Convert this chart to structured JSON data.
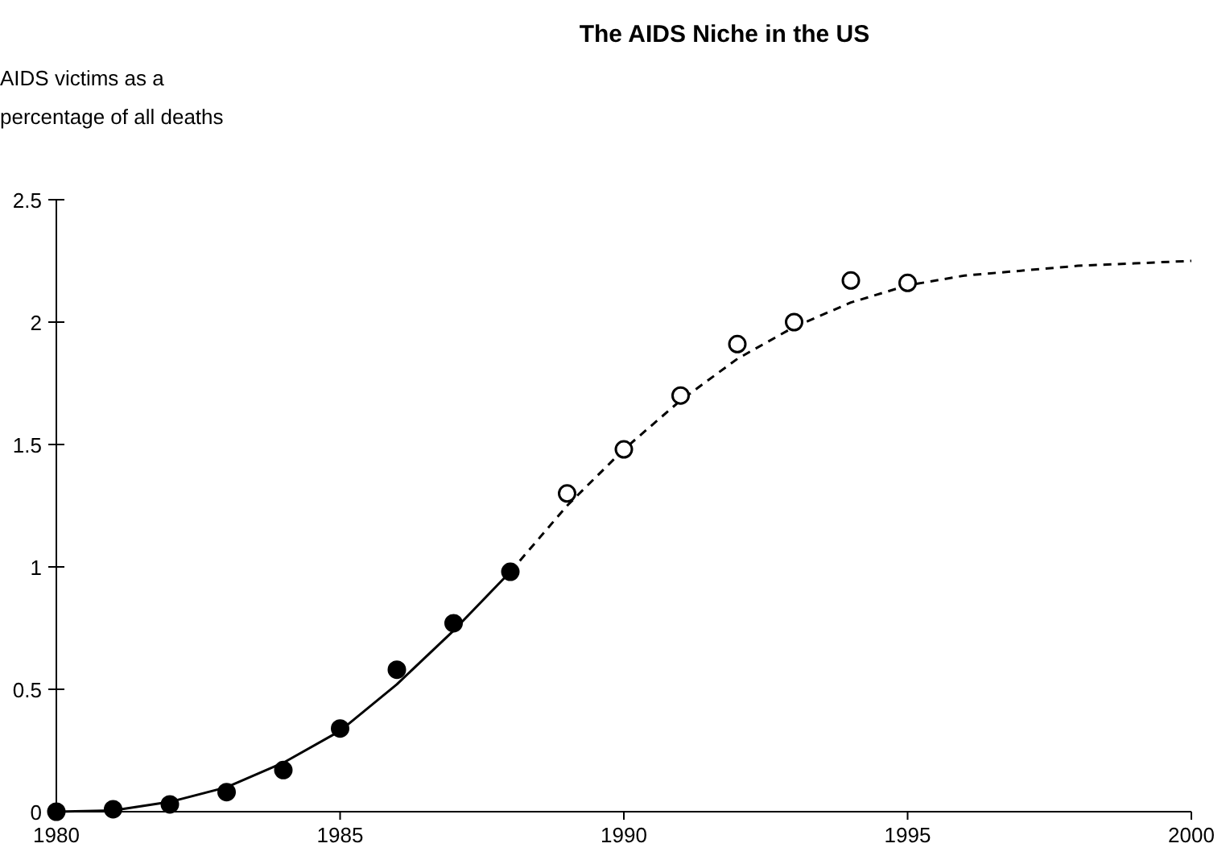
{
  "chart_data": {
    "type": "scatter",
    "title": "The AIDS Niche in the US",
    "ylabel": "AIDS victims as a percentage of all deaths",
    "xlim": [
      1980,
      2000
    ],
    "xticks": [
      1980,
      1985,
      1990,
      1995,
      2000
    ],
    "ylim": [
      0,
      2.5
    ],
    "yticks": [
      0,
      0.5,
      1,
      1.5,
      2,
      2.5
    ],
    "grid": false,
    "series": [
      {
        "type": "line",
        "color": "#000000",
        "marker": "none",
        "line_style": "solid",
        "x": [
          1980,
          1981,
          1982,
          1983,
          1984,
          1985,
          1986,
          1987,
          1988
        ],
        "values": [
          0,
          0.005,
          0.04,
          0.1,
          0.2,
          0.33,
          0.52,
          0.74,
          0.98
        ]
      },
      {
        "type": "line",
        "color": "#000000",
        "marker": "none",
        "line_style": "dashed",
        "x": [
          1988,
          1989,
          1990,
          1991,
          1992,
          1993,
          1994,
          1995,
          1996,
          1997,
          1998,
          1999,
          2000
        ],
        "values": [
          0.98,
          1.25,
          1.48,
          1.68,
          1.85,
          1.98,
          2.08,
          2.15,
          2.19,
          2.21,
          2.23,
          2.24,
          2.25
        ]
      },
      {
        "color": "#000000",
        "marker": "circle",
        "x": [
          1980,
          1981,
          1982,
          1983,
          1984,
          1985,
          1986,
          1987,
          1988
        ],
        "values": [
          0,
          0.01,
          0.03,
          0.08,
          0.17,
          0.34,
          0.58,
          0.77,
          0.98
        ]
      },
      {
        "color": "#ffffff",
        "marker": "circle",
        "x": [
          1989,
          1990,
          1991,
          1992,
          1993,
          1994,
          1995
        ],
        "values": [
          1.3,
          1.48,
          1.7,
          1.91,
          2.0,
          2.17,
          2.16
        ]
      }
    ]
  }
}
